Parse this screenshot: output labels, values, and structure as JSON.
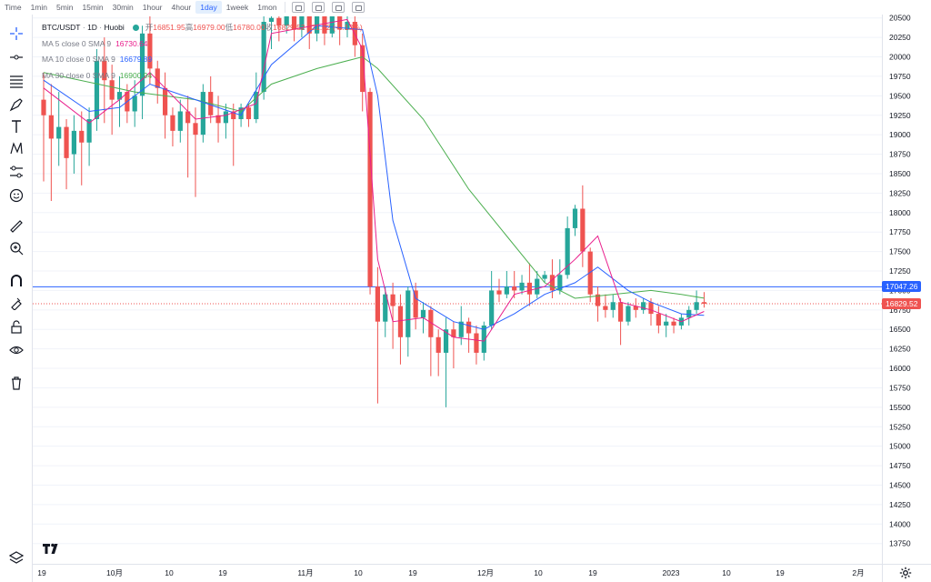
{
  "toolbar": {
    "intervals": [
      "Time",
      "1min",
      "5min",
      "15min",
      "30min",
      "1hour",
      "4hour",
      "1day",
      "1week",
      "1mon"
    ],
    "active_interval": "1day"
  },
  "legend": {
    "symbol": "BTC/USDT",
    "resolution": "1D",
    "exchange": "Huobi",
    "open_label": "开",
    "open": "16851.95",
    "high_label": "高",
    "high": "16979.00",
    "low_label": "低",
    "low": "16780.00",
    "close_label": "收",
    "close": "16829.52",
    "change": "-21.62 (-0.13%)",
    "ma5_label": "MA 5 close 0 SMA 9",
    "ma5_value": "16730.64",
    "ma10_label": "MA 10 close 0 SMA 9",
    "ma10_value": "16679.89",
    "ma30_label": "MA 30 close 0 SMA 9",
    "ma30_value": "16900.94"
  },
  "price_axis": {
    "ticks": [
      20500,
      20250,
      20000,
      19750,
      19500,
      19250,
      19000,
      18750,
      18500,
      18250,
      18000,
      17750,
      17500,
      17250,
      17000,
      16750,
      16500,
      16250,
      16000,
      15750,
      15500,
      15250,
      15000,
      14750,
      14500,
      14250,
      14000,
      13750
    ],
    "badge_line": "17047.26",
    "badge_last": "16829.52"
  },
  "time_axis": {
    "labels": [
      "19",
      "10月",
      "10",
      "19",
      "11月",
      "10",
      "19",
      "12月",
      "10",
      "19",
      "2023",
      "10",
      "19",
      "2月"
    ]
  },
  "colors": {
    "up": "#26a69a",
    "down": "#ef5350",
    "ma5": "#e91e8c",
    "ma10": "#2962ff",
    "ma30": "#4caf50",
    "hline": "#2962ff"
  },
  "chart_data": {
    "type": "candlestick",
    "title": "BTC/USDT 1D Huobi",
    "ylim": [
      13700,
      20520
    ],
    "horizontal_line": 17047.26,
    "last_price": 16829.52,
    "candles": [
      [
        19450,
        19250,
        19800,
        18400
      ],
      [
        19250,
        18950,
        19650,
        18150
      ],
      [
        18950,
        19100,
        19550,
        18600
      ],
      [
        19100,
        18700,
        19200,
        18300
      ],
      [
        18750,
        19050,
        19250,
        18500
      ],
      [
        19050,
        18900,
        19300,
        18350
      ],
      [
        18900,
        19200,
        19350,
        18600
      ],
      [
        19200,
        19950,
        20100,
        19050
      ],
      [
        19950,
        19700,
        20250,
        19150
      ],
      [
        19700,
        19450,
        19900,
        19000
      ],
      [
        19450,
        19550,
        19750,
        19100
      ],
      [
        19550,
        19300,
        19650,
        19150
      ],
      [
        19300,
        19500,
        19700,
        19100
      ],
      [
        19500,
        20300,
        20400,
        19200
      ],
      [
        20300,
        19850,
        20520,
        19650
      ],
      [
        19850,
        19600,
        19950,
        19400
      ],
      [
        19600,
        19250,
        19800,
        18950
      ],
      [
        19250,
        19050,
        19350,
        18850
      ],
      [
        19050,
        19300,
        19450,
        18900
      ],
      [
        19300,
        19150,
        19500,
        18450
      ],
      [
        19150,
        19000,
        19350,
        18200
      ],
      [
        19000,
        19550,
        19650,
        18900
      ],
      [
        19550,
        19250,
        19750,
        19150
      ],
      [
        19250,
        19150,
        19500,
        18900
      ],
      [
        19150,
        19300,
        19400,
        18950
      ],
      [
        19300,
        19200,
        19400,
        18600
      ],
      [
        19200,
        19350,
        19400,
        19100
      ],
      [
        19350,
        19200,
        19400,
        19100
      ],
      [
        19200,
        19550,
        19800,
        19150
      ],
      [
        19550,
        20450,
        20520,
        19450
      ],
      [
        20450,
        20500,
        20520,
        20100
      ],
      [
        20500,
        20400,
        20520,
        20200
      ],
      [
        20400,
        20520,
        20520,
        20300
      ],
      [
        20520,
        20350,
        20520,
        20200
      ],
      [
        20350,
        20520,
        20520,
        20250
      ],
      [
        20520,
        20300,
        20520,
        20100
      ],
      [
        20300,
        20520,
        20520,
        20200
      ],
      [
        20520,
        20300,
        20520,
        20150
      ],
      [
        20300,
        20520,
        20520,
        20250
      ],
      [
        20520,
        20350,
        20520,
        20150
      ],
      [
        20350,
        20450,
        20520,
        20250
      ],
      [
        20450,
        20150,
        20520,
        20000
      ],
      [
        20150,
        19550,
        20300,
        19300
      ],
      [
        19550,
        17050,
        19600,
        16950
      ],
      [
        17050,
        16600,
        17300,
        15550
      ],
      [
        16600,
        16950,
        17050,
        16400
      ],
      [
        16950,
        16800,
        17100,
        16250
      ],
      [
        16800,
        16400,
        16950,
        16050
      ],
      [
        16400,
        17000,
        17050,
        16150
      ],
      [
        17000,
        16650,
        17100,
        16500
      ],
      [
        16650,
        16750,
        16850,
        16450
      ],
      [
        16750,
        16400,
        16800,
        15900
      ],
      [
        16400,
        16200,
        16500,
        15900
      ],
      [
        16200,
        16500,
        16650,
        15500
      ],
      [
        16500,
        16400,
        16600,
        16000
      ],
      [
        16400,
        16600,
        16800,
        16300
      ],
      [
        16600,
        16450,
        16650,
        16200
      ],
      [
        16450,
        16200,
        16550,
        16050
      ],
      [
        16200,
        16550,
        16600,
        16100
      ],
      [
        16550,
        17000,
        17250,
        16500
      ],
      [
        17000,
        16950,
        17150,
        16850
      ],
      [
        16950,
        17050,
        17250,
        16900
      ],
      [
        17050,
        17000,
        17250,
        16900
      ],
      [
        17000,
        17100,
        17200,
        16950
      ],
      [
        17100,
        16950,
        17350,
        16800
      ],
      [
        16950,
        17150,
        17250,
        16900
      ],
      [
        17150,
        17200,
        17250,
        17100
      ],
      [
        17200,
        17000,
        17400,
        16900
      ],
      [
        17000,
        17200,
        17400,
        16950
      ],
      [
        17200,
        17800,
        17950,
        17150
      ],
      [
        17800,
        18050,
        18100,
        17700
      ],
      [
        18050,
        17500,
        18350,
        17300
      ],
      [
        17500,
        16950,
        17550,
        16850
      ],
      [
        16950,
        16800,
        17050,
        16600
      ],
      [
        16800,
        16750,
        16950,
        16650
      ],
      [
        16750,
        16850,
        16950,
        16650
      ],
      [
        16850,
        16600,
        16900,
        16300
      ],
      [
        16600,
        16800,
        16850,
        16550
      ],
      [
        16800,
        16750,
        16900,
        16650
      ],
      [
        16750,
        16850,
        16900,
        16700
      ],
      [
        16850,
        16700,
        16900,
        16550
      ],
      [
        16700,
        16550,
        16800,
        16450
      ],
      [
        16550,
        16600,
        16700,
        16400
      ],
      [
        16600,
        16550,
        16650,
        16450
      ],
      [
        16550,
        16650,
        16700,
        16500
      ],
      [
        16650,
        16750,
        16800,
        16550
      ],
      [
        16750,
        16850,
        17000,
        16700
      ],
      [
        16850,
        16830,
        16979,
        16780
      ]
    ],
    "ma5": [
      [
        0,
        19600
      ],
      [
        6,
        19150
      ],
      [
        10,
        19450
      ],
      [
        14,
        19800
      ],
      [
        17,
        19500
      ],
      [
        20,
        19200
      ],
      [
        24,
        19250
      ],
      [
        28,
        19400
      ],
      [
        30,
        20300
      ],
      [
        40,
        20480
      ],
      [
        42,
        20100
      ],
      [
        44,
        17400
      ],
      [
        46,
        16600
      ],
      [
        50,
        16650
      ],
      [
        54,
        16400
      ],
      [
        58,
        16350
      ],
      [
        62,
        16950
      ],
      [
        66,
        17050
      ],
      [
        70,
        17400
      ],
      [
        73,
        17700
      ],
      [
        76,
        16850
      ],
      [
        80,
        16750
      ],
      [
        84,
        16600
      ],
      [
        87,
        16731
      ]
    ],
    "ma10": [
      [
        0,
        19700
      ],
      [
        6,
        19300
      ],
      [
        10,
        19350
      ],
      [
        14,
        19650
      ],
      [
        20,
        19450
      ],
      [
        26,
        19250
      ],
      [
        30,
        19900
      ],
      [
        36,
        20400
      ],
      [
        42,
        20350
      ],
      [
        44,
        19500
      ],
      [
        46,
        17900
      ],
      [
        49,
        16900
      ],
      [
        54,
        16600
      ],
      [
        58,
        16500
      ],
      [
        62,
        16700
      ],
      [
        66,
        16950
      ],
      [
        70,
        17100
      ],
      [
        73,
        17300
      ],
      [
        77,
        17000
      ],
      [
        80,
        16850
      ],
      [
        84,
        16700
      ],
      [
        87,
        16680
      ]
    ],
    "ma30": [
      [
        0,
        19800
      ],
      [
        12,
        19550
      ],
      [
        20,
        19450
      ],
      [
        26,
        19300
      ],
      [
        30,
        19650
      ],
      [
        36,
        19850
      ],
      [
        42,
        20000
      ],
      [
        44,
        19850
      ],
      [
        50,
        19200
      ],
      [
        56,
        18300
      ],
      [
        61,
        17700
      ],
      [
        66,
        17100
      ],
      [
        70,
        16900
      ],
      [
        75,
        16950
      ],
      [
        80,
        17000
      ],
      [
        84,
        16950
      ],
      [
        87,
        16901
      ]
    ]
  }
}
